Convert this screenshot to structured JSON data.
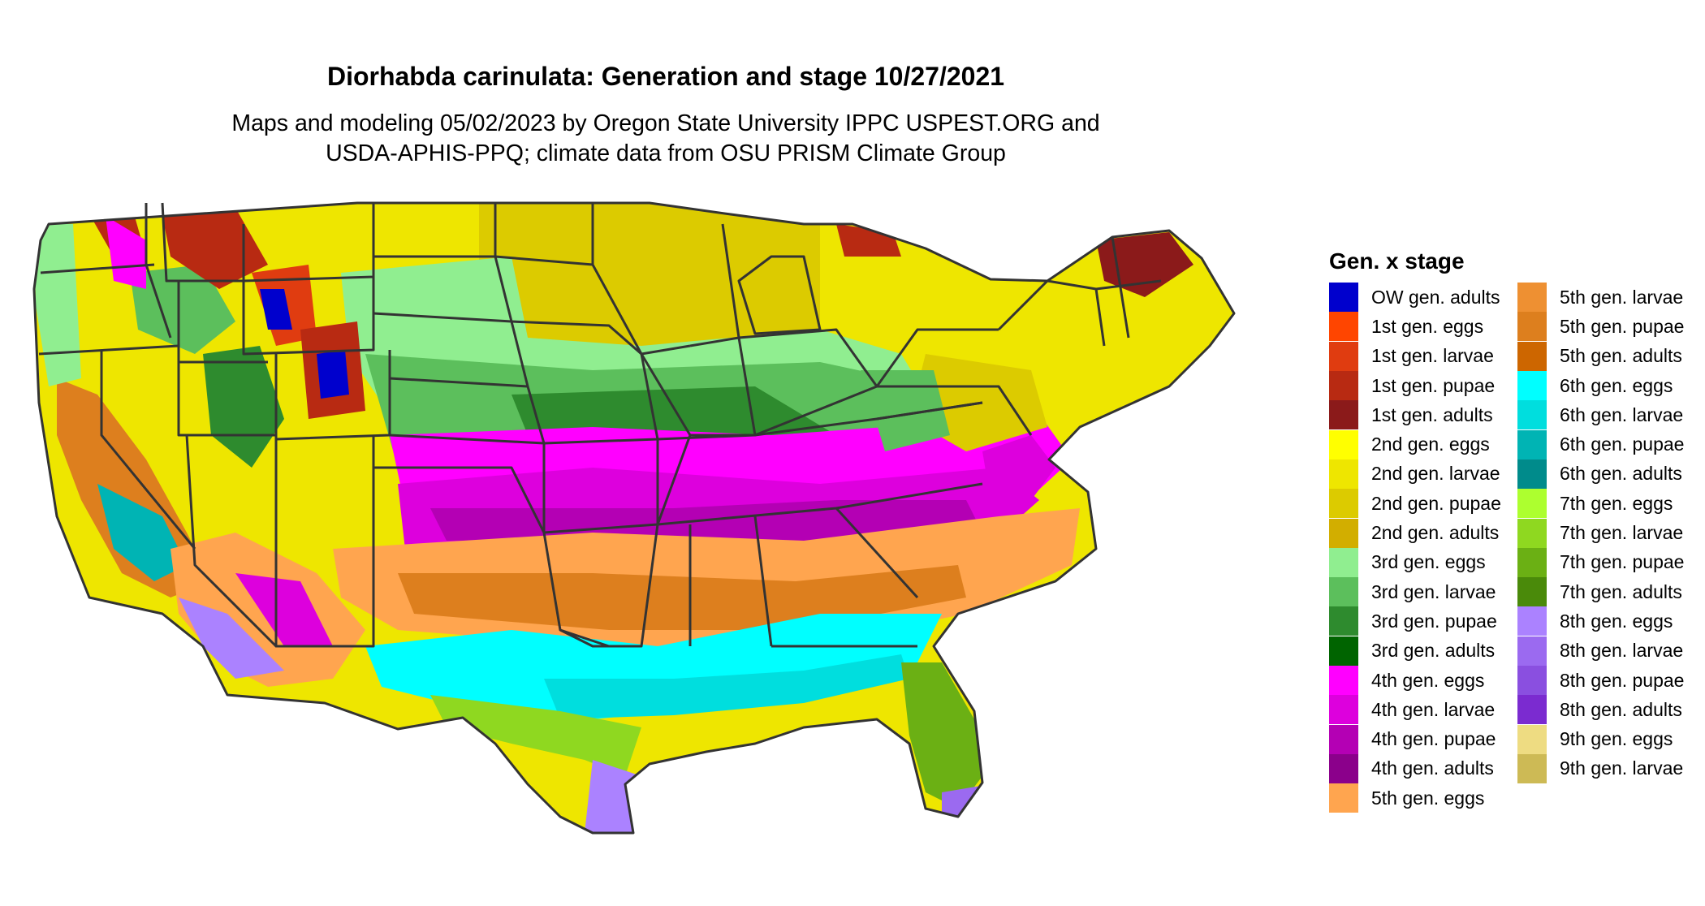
{
  "title": "Diorhabda carinulata: Generation and stage 10/27/2021",
  "subtitle_line1": "Maps and modeling 05/02/2023 by Oregon State University IPPC USPEST.ORG and",
  "subtitle_line2": "USDA-APHIS-PPQ; climate data from OSU PRISM Climate Group",
  "legend": {
    "title": "Gen. x stage",
    "column1": [
      {
        "label": "OW gen. adults",
        "color": "#0000CD"
      },
      {
        "label": "1st gen. eggs",
        "color": "#FF4500"
      },
      {
        "label": "1st gen. larvae",
        "color": "#E03C10"
      },
      {
        "label": "1st gen. pupae",
        "color": "#B82A12"
      },
      {
        "label": "1st gen. adults",
        "color": "#8B1A1A"
      },
      {
        "label": "2nd gen. eggs",
        "color": "#FFFF00"
      },
      {
        "label": "2nd gen. larvae",
        "color": "#EEE600"
      },
      {
        "label": "2nd gen. pupae",
        "color": "#DCCB00"
      },
      {
        "label": "2nd gen. adults",
        "color": "#D2AE00"
      },
      {
        "label": "3rd gen. eggs",
        "color": "#90EE90"
      },
      {
        "label": "3rd gen. larvae",
        "color": "#5CBF5C"
      },
      {
        "label": "3rd gen. pupae",
        "color": "#2E8B2E"
      },
      {
        "label": "3rd gen. adults",
        "color": "#006400"
      },
      {
        "label": "4th gen. eggs",
        "color": "#FF00FF"
      },
      {
        "label": "4th gen. larvae",
        "color": "#DD00DD"
      },
      {
        "label": "4th gen. pupae",
        "color": "#B400B4"
      },
      {
        "label": "4th gen. adults",
        "color": "#8B008B"
      },
      {
        "label": "5th gen. eggs",
        "color": "#FFA54F"
      }
    ],
    "column2": [
      {
        "label": "5th gen. larvae",
        "color": "#EE9032"
      },
      {
        "label": "5th gen. pupae",
        "color": "#DD7F1E"
      },
      {
        "label": "5th gen. adults",
        "color": "#CD6600"
      },
      {
        "label": "6th gen. eggs",
        "color": "#00FFFF"
      },
      {
        "label": "6th gen. larvae",
        "color": "#00DEDE"
      },
      {
        "label": "6th gen. pupae",
        "color": "#00B4B4"
      },
      {
        "label": "6th gen. adults",
        "color": "#008B8B"
      },
      {
        "label": "7th gen. eggs",
        "color": "#ADFF2F"
      },
      {
        "label": "7th gen. larvae",
        "color": "#8FD820"
      },
      {
        "label": "7th gen. pupae",
        "color": "#6BB014"
      },
      {
        "label": "7th gen. adults",
        "color": "#4A8A0A"
      },
      {
        "label": "8th gen. eggs",
        "color": "#AB82FF"
      },
      {
        "label": "8th gen. larvae",
        "color": "#9B6AF0"
      },
      {
        "label": "8th gen. pupae",
        "color": "#8A4FE0"
      },
      {
        "label": "8th gen. adults",
        "color": "#7B2BD0"
      },
      {
        "label": "9th gen. eggs",
        "color": "#EEDC82"
      },
      {
        "label": "9th gen. larvae",
        "color": "#CDBA55"
      }
    ]
  },
  "map_colors": {
    "ow_adults": "#0000CD",
    "gen1_larvae": "#E03C10",
    "gen1_pupae": "#B82A12",
    "gen1_adults": "#8B1A1A",
    "gen2_eggs": "#FFFF00",
    "gen2_larvae": "#EEE600",
    "gen2_pupae": "#DCCB00",
    "gen3_eggs": "#90EE90",
    "gen3_larvae": "#5CBF5C",
    "gen3_pupae": "#2E8B2E",
    "gen3_adults": "#006400",
    "gen4_eggs": "#FF00FF",
    "gen4_larvae": "#DD00DD",
    "gen4_pupae": "#B400B4",
    "gen5_eggs": "#FFA54F",
    "gen5_pupae": "#DD7F1E",
    "gen6_eggs": "#00FFFF",
    "gen6_larvae": "#00DEDE",
    "gen6_pupae": "#00B4B4",
    "gen7_larvae": "#8FD820",
    "gen7_pupae": "#6BB014",
    "gen8_eggs": "#AB82FF",
    "gen8_larvae": "#9B6AF0",
    "border": "#333333"
  }
}
